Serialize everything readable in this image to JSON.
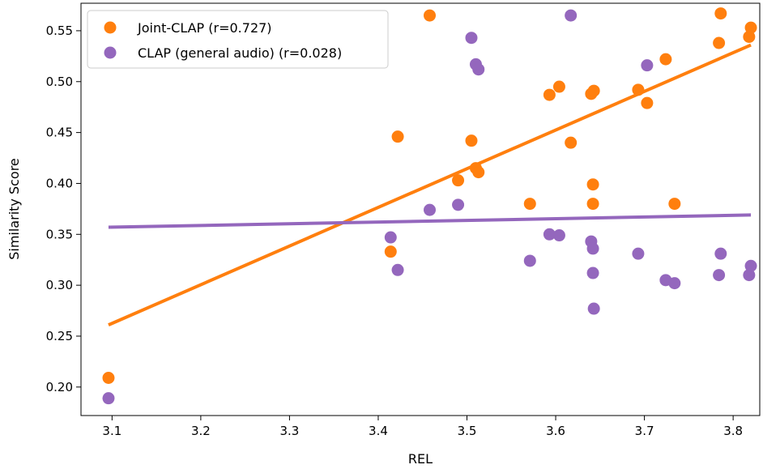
{
  "chart_data": {
    "type": "scatter",
    "xlabel": "REL",
    "ylabel": "Similarity Score",
    "xlim": [
      3.065,
      3.83
    ],
    "ylim": [
      0.172,
      0.577
    ],
    "xticks": [
      "3.1",
      "3.2",
      "3.3",
      "3.4",
      "3.5",
      "3.6",
      "3.7",
      "3.8"
    ],
    "yticks": [
      "0.20",
      "0.25",
      "0.30",
      "0.35",
      "0.40",
      "0.45",
      "0.50",
      "0.55"
    ],
    "grid": false,
    "legend_position": "top-left",
    "series": [
      {
        "name": "Joint-CLAP (r=0.727)",
        "color": "#ff7f0e",
        "points": [
          [
            3.096,
            0.209
          ],
          [
            3.414,
            0.333
          ],
          [
            3.422,
            0.446
          ],
          [
            3.458,
            0.565
          ],
          [
            3.49,
            0.403
          ],
          [
            3.505,
            0.442
          ],
          [
            3.51,
            0.415
          ],
          [
            3.513,
            0.411
          ],
          [
            3.571,
            0.38
          ],
          [
            3.593,
            0.487
          ],
          [
            3.604,
            0.495
          ],
          [
            3.617,
            0.44
          ],
          [
            3.64,
            0.488
          ],
          [
            3.642,
            0.399
          ],
          [
            3.642,
            0.38
          ],
          [
            3.643,
            0.491
          ],
          [
            3.693,
            0.492
          ],
          [
            3.703,
            0.479
          ],
          [
            3.724,
            0.522
          ],
          [
            3.734,
            0.38
          ],
          [
            3.784,
            0.538
          ],
          [
            3.786,
            0.567
          ],
          [
            3.818,
            0.544
          ],
          [
            3.82,
            0.553
          ]
        ],
        "trend": [
          [
            3.096,
            0.261
          ],
          [
            3.82,
            0.536
          ]
        ]
      },
      {
        "name": "CLAP (general audio) (r=0.028)",
        "color": "#9467bd",
        "points": [
          [
            3.096,
            0.189
          ],
          [
            3.414,
            0.347
          ],
          [
            3.422,
            0.315
          ],
          [
            3.458,
            0.374
          ],
          [
            3.49,
            0.379
          ],
          [
            3.505,
            0.543
          ],
          [
            3.51,
            0.517
          ],
          [
            3.513,
            0.512
          ],
          [
            3.571,
            0.324
          ],
          [
            3.593,
            0.35
          ],
          [
            3.604,
            0.349
          ],
          [
            3.617,
            0.565
          ],
          [
            3.64,
            0.343
          ],
          [
            3.642,
            0.336
          ],
          [
            3.642,
            0.312
          ],
          [
            3.643,
            0.277
          ],
          [
            3.693,
            0.331
          ],
          [
            3.703,
            0.516
          ],
          [
            3.724,
            0.305
          ],
          [
            3.734,
            0.302
          ],
          [
            3.784,
            0.31
          ],
          [
            3.786,
            0.331
          ],
          [
            3.818,
            0.31
          ],
          [
            3.82,
            0.319
          ]
        ],
        "trend": [
          [
            3.096,
            0.357
          ],
          [
            3.82,
            0.369
          ]
        ]
      }
    ]
  }
}
